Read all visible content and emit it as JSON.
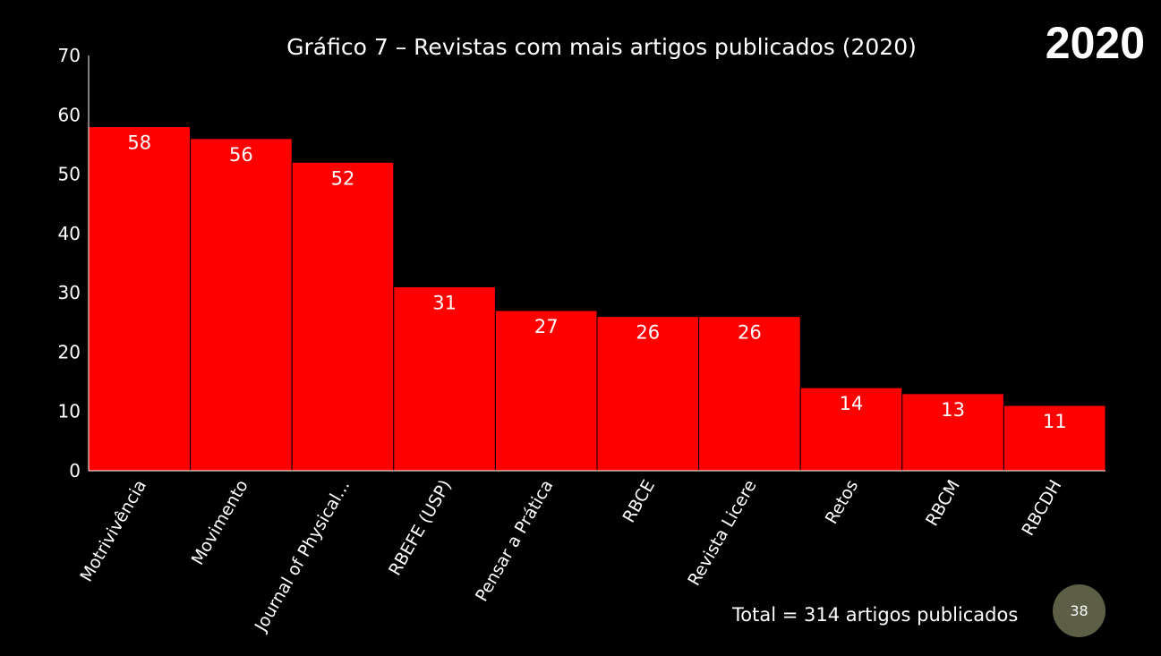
{
  "slide": {
    "year": "2020",
    "total_text": "Total = 314 artigos publicados",
    "page_number": "38"
  },
  "colors": {
    "background": "#000000",
    "bar": "#ff0000",
    "text": "#ffffff",
    "badge": "#5c5f45"
  },
  "chart_data": {
    "type": "bar",
    "title": "Gráfico 7 – Revistas com mais artigos publicados (2020)",
    "xlabel": "",
    "ylabel": "",
    "ylim": [
      0,
      70
    ],
    "yticks": [
      0,
      10,
      20,
      30,
      40,
      50,
      60,
      70
    ],
    "grid": false,
    "legend": "none",
    "data_labels": true,
    "categories": [
      "Motrivivência",
      "Movimento",
      "Journal of Physical...",
      "RBEFE (USP)",
      "Pensar a Prática",
      "RBCE",
      "Revista Licere",
      "Retos",
      "RBCM",
      "RBCDH"
    ],
    "values": [
      58,
      56,
      52,
      31,
      27,
      26,
      26,
      14,
      13,
      11
    ]
  }
}
